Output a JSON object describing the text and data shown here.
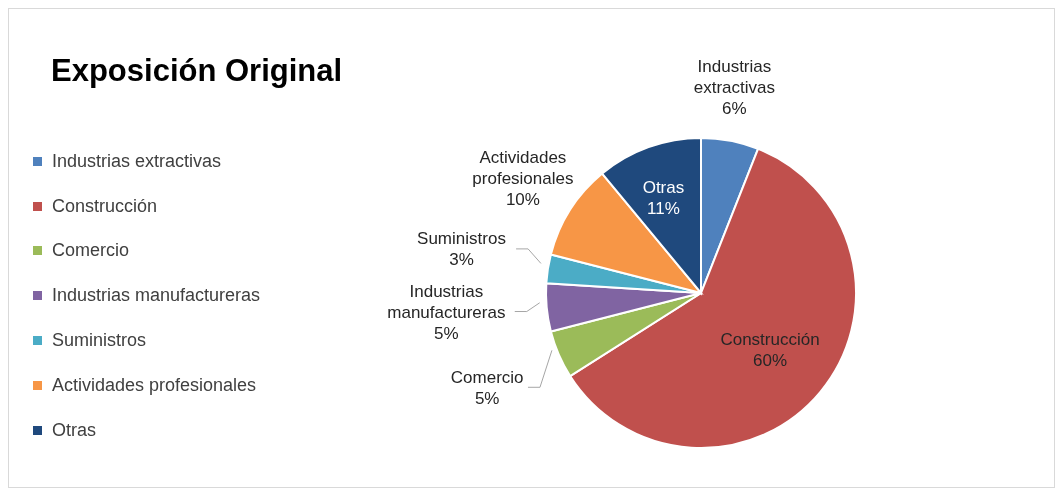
{
  "chart_data": {
    "type": "pie",
    "title": "Exposición Original",
    "categories": [
      "Industrias extractivas",
      "Construcción",
      "Comercio",
      "Industrias manufactureras",
      "Suministros",
      "Actividades profesionales",
      "Otras"
    ],
    "values": [
      6,
      60,
      5,
      5,
      3,
      10,
      11
    ],
    "value_labels": [
      "6%",
      "60%",
      "5%",
      "5%",
      "3%",
      "10%",
      "11%"
    ],
    "colors": [
      "#4f81bd",
      "#c0504d",
      "#9bbb59",
      "#8064a2",
      "#4bacc6",
      "#f79646",
      "#1f497d"
    ],
    "legend": "left"
  }
}
